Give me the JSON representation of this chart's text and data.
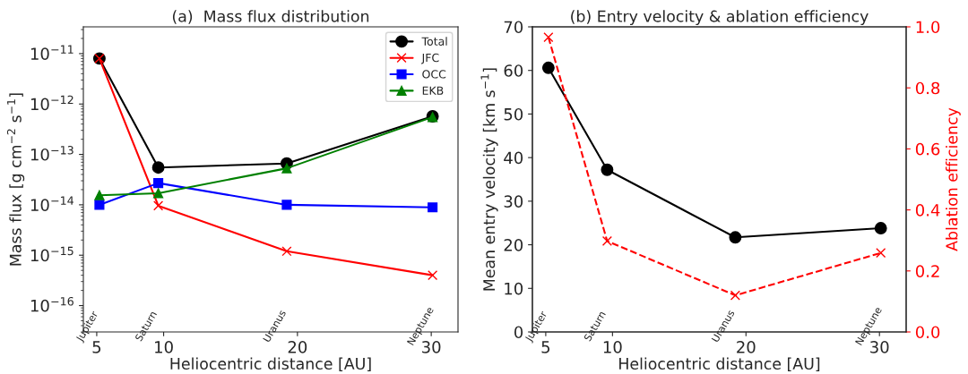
{
  "chart_data": [
    {
      "type": "line",
      "title": "(a)  Mass flux distribution",
      "xlabel": "Heliocentric distance [AU]",
      "ylabel": "Mass flux [g cm$^{−2}$ s$^{−1}$]",
      "x": [
        5.2,
        9.6,
        19.2,
        30.1
      ],
      "log": "y",
      "xlim": [
        4,
        32
      ],
      "xticks": [
        5,
        10,
        20,
        30
      ],
      "ylim": [
        3e-17,
        3.4e-11
      ],
      "yticks": [
        {
          "value": 1e-16,
          "label": "10$^{−16}$"
        },
        {
          "value": 1e-15,
          "label": "10$^{−15}$"
        },
        {
          "value": 1e-14,
          "label": "10$^{−14}$"
        },
        {
          "value": 1e-13,
          "label": "10$^{−13}$"
        },
        {
          "value": 1e-12,
          "label": "10$^{−12}$"
        },
        {
          "value": 1e-11,
          "label": "10$^{−11}$"
        }
      ],
      "legend": "top right",
      "grid": false,
      "series": [
        {
          "name": "Total",
          "color": "#000000",
          "marker": "circle",
          "values": [
            8e-12,
            5.5e-14,
            6.6e-14,
            5.7e-13
          ]
        },
        {
          "name": "JFC",
          "color": "#ff0000",
          "marker": "cross",
          "values": [
            8e-12,
            9.6e-15,
            1.2e-15,
            4e-16
          ]
        },
        {
          "name": "OCC",
          "color": "#0000ff",
          "marker": "square",
          "values": [
            1e-14,
            2.7e-14,
            1e-14,
            8.9e-15
          ]
        },
        {
          "name": "EKB",
          "color": "#008000",
          "marker": "triangle",
          "values": [
            1.55e-14,
            1.7e-14,
            5.3e-14,
            5.5e-13
          ]
        }
      ],
      "annotations": [
        "Jupiter",
        "Saturn",
        "Uranus",
        "Neptune"
      ]
    },
    {
      "type": "line",
      "title": "(b) Entry velocity & ablation efficiency",
      "xlabel": "Heliocentric distance [AU]",
      "ylabel": "Mean entry velocity [km s$^{−1}$]",
      "y2label": "Ablation efficiency",
      "x": [
        5.2,
        9.6,
        19.2,
        30.1
      ],
      "xlim": [
        4,
        32
      ],
      "xticks": [
        5,
        10,
        20,
        30
      ],
      "ylim": [
        0,
        70
      ],
      "yticks": [
        0,
        10,
        20,
        30,
        40,
        50,
        60,
        70
      ],
      "y2lim": [
        0,
        1
      ],
      "y2ticks": [
        {
          "value": 0,
          "label": "0.0"
        },
        0.2,
        0.4,
        0.6,
        0.8,
        {
          "value": 1,
          "label": "1.0"
        }
      ],
      "legend": false,
      "grid": false,
      "series": [
        {
          "color": "#000000",
          "marker": "circle",
          "line_style": "solid",
          "values": [
            60.6,
            37.2,
            21.7,
            23.8
          ]
        },
        {
          "color": "#ff0000",
          "marker": "cross",
          "line_style": "dashed",
          "axis": "y2",
          "values": [
            0.966,
            0.298,
            0.12,
            0.259
          ]
        }
      ],
      "annotations": [
        "Jupiter",
        "Saturn",
        "Uranus",
        "Neptune"
      ]
    }
  ]
}
